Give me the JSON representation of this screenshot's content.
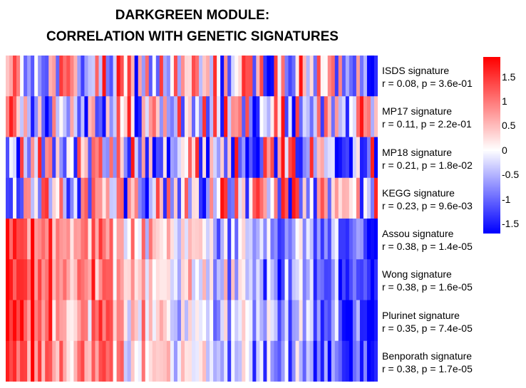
{
  "title_line1": "DARKGREEN MODULE:",
  "title_line2": "CORRELATION WITH GENETIC SIGNATURES",
  "chart_data": {
    "type": "heatmap",
    "n_columns": 104,
    "rows": [
      {
        "name": "ISDS signature",
        "stat": "r = 0.08, p = 3.6e-01",
        "pattern": "mixed"
      },
      {
        "name": "MP17 signature",
        "stat": "r = 0.11, p = 2.2e-01",
        "pattern": "mixed"
      },
      {
        "name": "MP18 signature",
        "stat": "r = 0.21, p = 1.8e-02",
        "pattern": "mixed"
      },
      {
        "name": "KEGG signature",
        "stat": "r = 0.23, p = 9.6e-03",
        "pattern": "mixed"
      },
      {
        "name": "Assou signature",
        "stat": "r = 0.38, p = 1.4e-05",
        "pattern": "gradient"
      },
      {
        "name": "Wong signature",
        "stat": "r = 0.38, p = 1.6e-05",
        "pattern": "gradient"
      },
      {
        "name": "Plurinet signature",
        "stat": "r = 0.35, p = 7.4e-05",
        "pattern": "gradient"
      },
      {
        "name": "Benporath signature",
        "stat": "r = 0.38, p = 1.7e-05",
        "pattern": "gradient"
      }
    ],
    "color_scale": {
      "min": -1.7,
      "max": 1.9,
      "low": "#0000ff",
      "mid": "#ffffff",
      "high": "#ff0000"
    },
    "legend_ticks": [
      "1.5",
      "1",
      "0.5",
      "0",
      "-0.5",
      "-1",
      "-1.5"
    ],
    "legend_tick_values": [
      1.5,
      1,
      0.5,
      0,
      -0.5,
      -1,
      -1.5
    ]
  }
}
